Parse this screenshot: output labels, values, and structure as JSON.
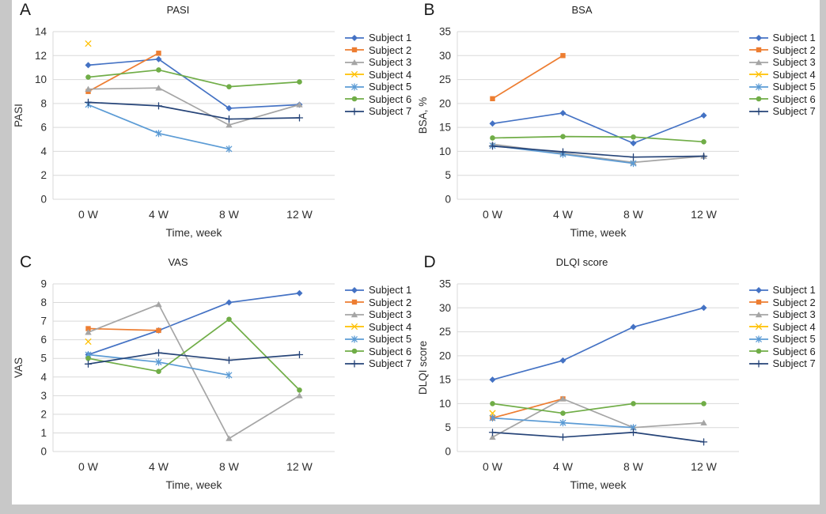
{
  "figure": {
    "background": "#ffffff",
    "frame_color": "#c8c8c8",
    "grid_color": "#d9d9d9",
    "axis_color": "#d9d9d9",
    "text_color": "#2e2e2e",
    "line_width": 1.7
  },
  "subjects": [
    {
      "label": "Subject 1",
      "color": "#4472C4",
      "marker": "diamond"
    },
    {
      "label": "Subject 2",
      "color": "#ED7D31",
      "marker": "square"
    },
    {
      "label": "Subject 3",
      "color": "#A5A5A5",
      "marker": "triangle"
    },
    {
      "label": "Subject 4",
      "color": "#FFC000",
      "marker": "x"
    },
    {
      "label": "Subject 5",
      "color": "#5B9BD5",
      "marker": "asterisk"
    },
    {
      "label": "Subject 6",
      "color": "#70AD47",
      "marker": "circle"
    },
    {
      "label": "Subject 7",
      "color": "#264478",
      "marker": "plus"
    }
  ],
  "chart_data": [
    {
      "panel": "A",
      "type": "line",
      "title": "PASI",
      "ylabel": "PASI",
      "xlabel": "Time, week",
      "categories": [
        "0 W",
        "4 W",
        "8 W",
        "12 W"
      ],
      "ylim": [
        0,
        14
      ],
      "ytick_step": 2,
      "grid": true,
      "legend_position": "right",
      "series": [
        {
          "name": "Subject 1",
          "values": [
            11.2,
            11.7,
            7.6,
            7.9
          ]
        },
        {
          "name": "Subject 2",
          "values": [
            9.0,
            12.2,
            null,
            null
          ]
        },
        {
          "name": "Subject 3",
          "values": [
            9.2,
            9.3,
            6.2,
            7.9
          ]
        },
        {
          "name": "Subject 4",
          "values": [
            13.0,
            null,
            null,
            null
          ]
        },
        {
          "name": "Subject 5",
          "values": [
            7.9,
            5.5,
            4.2,
            null
          ]
        },
        {
          "name": "Subject 6",
          "values": [
            10.2,
            10.8,
            9.4,
            9.8
          ]
        },
        {
          "name": "Subject 7",
          "values": [
            8.1,
            7.8,
            6.7,
            6.8
          ]
        }
      ]
    },
    {
      "panel": "B",
      "type": "line",
      "title": "BSA",
      "ylabel": "BSA, %",
      "xlabel": "Time, week",
      "categories": [
        "0 W",
        "4 W",
        "8 W",
        "12 W"
      ],
      "ylim": [
        0,
        35
      ],
      "ytick_step": 5,
      "grid": true,
      "legend_position": "right",
      "series": [
        {
          "name": "Subject 1",
          "values": [
            15.8,
            18,
            11.7,
            17.5
          ]
        },
        {
          "name": "Subject 2",
          "values": [
            21,
            30,
            null,
            null
          ]
        },
        {
          "name": "Subject 3",
          "values": [
            11.5,
            9.6,
            7.7,
            9.0
          ]
        },
        {
          "name": "Subject 4",
          "values": [
            null,
            null,
            null,
            null
          ]
        },
        {
          "name": "Subject 5",
          "values": [
            11.2,
            9.4,
            7.5,
            null
          ]
        },
        {
          "name": "Subject 6",
          "values": [
            12.8,
            13.1,
            13.0,
            12.0
          ]
        },
        {
          "name": "Subject 7",
          "values": [
            11.1,
            9.9,
            8.8,
            9.0
          ]
        }
      ]
    },
    {
      "panel": "C",
      "type": "line",
      "title": "VAS",
      "ylabel": "VAS",
      "xlabel": "Time, week",
      "categories": [
        "0 W",
        "4 W",
        "8 W",
        "12 W"
      ],
      "ylim": [
        0,
        9
      ],
      "ytick_step": 1,
      "grid": true,
      "legend_position": "right",
      "series": [
        {
          "name": "Subject 1",
          "values": [
            5.2,
            6.5,
            8.0,
            8.5
          ]
        },
        {
          "name": "Subject 2",
          "values": [
            6.6,
            6.5,
            null,
            null
          ]
        },
        {
          "name": "Subject 3",
          "values": [
            6.4,
            7.9,
            0.7,
            3.0
          ]
        },
        {
          "name": "Subject 4",
          "values": [
            5.9,
            null,
            null,
            null
          ]
        },
        {
          "name": "Subject 5",
          "values": [
            5.2,
            4.8,
            4.1,
            null
          ]
        },
        {
          "name": "Subject 6",
          "values": [
            5.0,
            4.3,
            7.1,
            3.3
          ]
        },
        {
          "name": "Subject 7",
          "values": [
            4.7,
            5.3,
            4.9,
            5.2
          ]
        }
      ]
    },
    {
      "panel": "D",
      "type": "line",
      "title": "DLQI score",
      "ylabel": "DLQI score",
      "xlabel": "Time, week",
      "categories": [
        "0 W",
        "4 W",
        "8 W",
        "12 W"
      ],
      "ylim": [
        0,
        35
      ],
      "ytick_step": 5,
      "grid": true,
      "legend_position": "right",
      "series": [
        {
          "name": "Subject 1",
          "values": [
            15,
            19,
            26,
            30
          ]
        },
        {
          "name": "Subject 2",
          "values": [
            7,
            11,
            null,
            null
          ]
        },
        {
          "name": "Subject 3",
          "values": [
            3,
            11,
            5,
            6
          ]
        },
        {
          "name": "Subject 4",
          "values": [
            8,
            null,
            null,
            null
          ]
        },
        {
          "name": "Subject 5",
          "values": [
            7,
            6,
            5,
            null
          ]
        },
        {
          "name": "Subject 6",
          "values": [
            10,
            8,
            10,
            10
          ]
        },
        {
          "name": "Subject 7",
          "values": [
            4,
            3,
            4,
            2
          ]
        }
      ]
    }
  ]
}
